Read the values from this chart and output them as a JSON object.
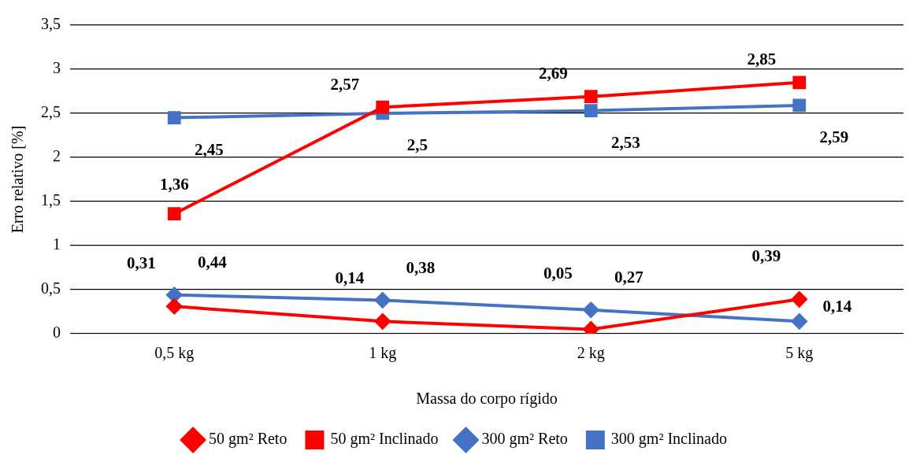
{
  "chart_data": {
    "type": "line",
    "xlabel": "Massa do corpo rígido",
    "ylabel": "Erro relativo [%]",
    "categories": [
      "0,5 kg",
      "1 kg",
      "2 kg",
      "5 kg"
    ],
    "series": [
      {
        "name": "50 gm² Reto",
        "color": "#ff0000",
        "marker": "diamond",
        "values": [
          0.31,
          0.14,
          0.05,
          0.39
        ],
        "value_labels": [
          "0,31",
          "0,14",
          "0,05",
          "0,39"
        ]
      },
      {
        "name": "50 gm² Inclinado",
        "color": "#ff0000",
        "marker": "square",
        "values": [
          1.36,
          2.57,
          2.69,
          2.85
        ],
        "value_labels": [
          "1,36",
          "2,57",
          "2,69",
          "2,85"
        ]
      },
      {
        "name": "300 gm² Reto",
        "color": "#4472c4",
        "marker": "diamond",
        "values": [
          0.44,
          0.38,
          0.27,
          0.14
        ],
        "value_labels": [
          "0,44",
          "0,38",
          "0,27",
          "0,14"
        ]
      },
      {
        "name": "300 gm² Inclinado",
        "color": "#4472c4",
        "marker": "square",
        "values": [
          2.45,
          2.5,
          2.53,
          2.59
        ],
        "value_labels": [
          "2,45",
          "2,5",
          "2,53",
          "2,59"
        ]
      }
    ],
    "ylim": [
      0,
      3.5
    ],
    "yticks": [
      0,
      {
        "value": 0.5,
        "label": "0,5"
      },
      1,
      {
        "value": 1.5,
        "label": "1,5"
      },
      2,
      {
        "value": 2.5,
        "label": "2,5"
      },
      3,
      {
        "value": 3.5,
        "label": "3,5"
      }
    ],
    "grid": "y",
    "legend": "bottom",
    "line_style": "solid"
  }
}
